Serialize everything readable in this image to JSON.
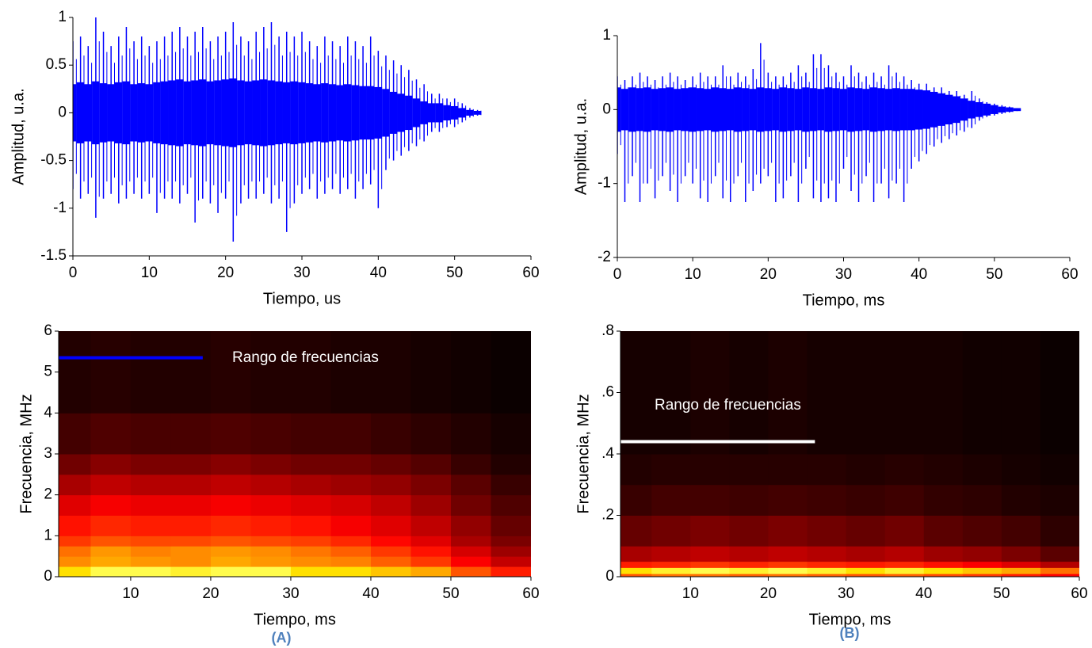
{
  "chart_data": [
    {
      "type": "waveform",
      "xlabel": "Tiempo, us",
      "ylabel": "Amplitud, u.a.",
      "color": "#0000ff",
      "xlim": [
        0,
        60
      ],
      "xticks": [
        0,
        10,
        20,
        30,
        40,
        50,
        60
      ],
      "ylim": [
        -1.5,
        1
      ],
      "yticks": [
        -1.5,
        -1,
        -0.5,
        0,
        0.5,
        1
      ],
      "x": [
        0,
        1,
        2,
        3,
        4,
        5,
        6,
        7,
        8,
        9,
        10,
        11,
        12,
        13,
        14,
        15,
        16,
        17,
        18,
        19,
        20,
        21,
        22,
        23,
        24,
        25,
        26,
        27,
        28,
        29,
        30,
        31,
        32,
        33,
        34,
        35,
        36,
        37,
        38,
        39,
        40,
        41,
        42,
        43,
        44,
        45,
        46,
        47,
        48,
        49,
        50,
        51,
        52,
        53
      ],
      "upper": [
        0.75,
        0.8,
        0.7,
        1.0,
        0.85,
        0.7,
        0.8,
        0.9,
        0.75,
        0.8,
        0.7,
        0.75,
        0.8,
        0.85,
        0.9,
        0.8,
        0.85,
        0.9,
        0.75,
        0.8,
        0.85,
        0.95,
        0.8,
        0.75,
        0.85,
        0.9,
        0.95,
        0.8,
        0.85,
        0.8,
        0.85,
        0.75,
        0.7,
        0.8,
        0.75,
        0.7,
        0.8,
        0.75,
        0.7,
        0.8,
        0.65,
        0.6,
        0.55,
        0.5,
        0.45,
        0.35,
        0.3,
        0.2,
        0.2,
        0.15,
        0.15,
        0.1,
        0.05,
        0.03
      ],
      "lower": [
        -0.8,
        -0.9,
        -0.85,
        -1.1,
        -0.9,
        -0.85,
        -0.95,
        -0.9,
        -0.85,
        -0.9,
        -0.85,
        -1.05,
        -0.9,
        -0.9,
        -0.95,
        -0.85,
        -1.15,
        -0.9,
        -0.95,
        -1.05,
        -0.9,
        -1.35,
        -0.95,
        -0.9,
        -0.9,
        -0.85,
        -0.95,
        -0.9,
        -1.25,
        -0.95,
        -0.85,
        -0.8,
        -0.9,
        -0.85,
        -0.8,
        -0.85,
        -0.8,
        -0.9,
        -0.8,
        -0.75,
        -1.0,
        -0.6,
        -0.5,
        -0.45,
        -0.4,
        -0.35,
        -0.3,
        -0.2,
        -0.2,
        -0.15,
        -0.15,
        -0.1,
        -0.05,
        -0.03
      ],
      "rms": [
        0.3,
        0.32,
        0.3,
        0.33,
        0.31,
        0.3,
        0.32,
        0.33,
        0.3,
        0.31,
        0.3,
        0.32,
        0.33,
        0.34,
        0.35,
        0.33,
        0.34,
        0.35,
        0.33,
        0.34,
        0.35,
        0.36,
        0.34,
        0.33,
        0.34,
        0.35,
        0.34,
        0.33,
        0.32,
        0.33,
        0.32,
        0.31,
        0.3,
        0.31,
        0.3,
        0.29,
        0.3,
        0.29,
        0.28,
        0.28,
        0.27,
        0.25,
        0.22,
        0.2,
        0.18,
        0.15,
        0.12,
        0.1,
        0.1,
        0.08,
        0.07,
        0.05,
        0.03,
        0.02
      ]
    },
    {
      "type": "waveform",
      "xlabel": "Tiempo, ms",
      "ylabel": "Amplitud, u.a.",
      "color": "#0000ff",
      "xlim": [
        0,
        60
      ],
      "xticks": [
        0,
        10,
        20,
        30,
        40,
        50,
        60
      ],
      "ylim": [
        -2,
        1
      ],
      "yticks": [
        -2,
        -1,
        0,
        1
      ],
      "x": [
        0,
        1,
        2,
        3,
        4,
        5,
        6,
        7,
        8,
        9,
        10,
        11,
        12,
        13,
        14,
        15,
        16,
        17,
        18,
        19,
        20,
        21,
        22,
        23,
        24,
        25,
        26,
        27,
        28,
        29,
        30,
        31,
        32,
        33,
        34,
        35,
        36,
        37,
        38,
        39,
        40,
        41,
        42,
        43,
        44,
        45,
        46,
        47,
        48,
        49,
        50,
        51,
        52,
        53
      ],
      "upper": [
        0.45,
        0.4,
        0.45,
        0.5,
        0.45,
        0.4,
        0.45,
        0.5,
        0.45,
        0.4,
        0.45,
        0.5,
        0.45,
        0.45,
        0.6,
        0.45,
        0.5,
        0.45,
        0.55,
        0.9,
        0.5,
        0.45,
        0.45,
        0.5,
        0.6,
        0.5,
        0.75,
        0.75,
        0.6,
        0.5,
        0.45,
        0.6,
        0.5,
        0.45,
        0.5,
        0.45,
        0.6,
        0.5,
        0.45,
        0.4,
        0.35,
        0.35,
        0.3,
        0.3,
        0.25,
        0.25,
        0.2,
        0.25,
        0.15,
        0.1,
        0.08,
        0.06,
        0.04,
        0.02
      ],
      "lower": [
        -0.6,
        -1.25,
        -0.9,
        -1.25,
        -1.0,
        -1.2,
        -0.9,
        -1.1,
        -1.25,
        -0.9,
        -1.0,
        -1.2,
        -1.25,
        -0.9,
        -1.2,
        -1.25,
        -0.9,
        -1.25,
        -1.1,
        -1.0,
        -0.9,
        -1.25,
        -1.2,
        -0.9,
        -1.25,
        -0.8,
        -1.2,
        -1.25,
        -1.2,
        -1.25,
        -0.8,
        -1.1,
        -1.25,
        -0.9,
        -1.25,
        -1.0,
        -1.2,
        -1.0,
        -1.25,
        -0.8,
        -0.7,
        -0.6,
        -0.5,
        -0.45,
        -0.4,
        -0.35,
        -0.3,
        -0.25,
        -0.15,
        -0.1,
        -0.08,
        -0.06,
        -0.04,
        -0.02
      ],
      "rms": [
        0.3,
        0.28,
        0.3,
        0.29,
        0.3,
        0.28,
        0.29,
        0.3,
        0.28,
        0.29,
        0.3,
        0.29,
        0.28,
        0.3,
        0.29,
        0.28,
        0.3,
        0.29,
        0.28,
        0.3,
        0.29,
        0.28,
        0.3,
        0.29,
        0.28,
        0.3,
        0.29,
        0.28,
        0.3,
        0.29,
        0.28,
        0.3,
        0.29,
        0.28,
        0.3,
        0.29,
        0.28,
        0.29,
        0.28,
        0.28,
        0.27,
        0.26,
        0.24,
        0.22,
        0.2,
        0.18,
        0.15,
        0.12,
        0.1,
        0.08,
        0.06,
        0.04,
        0.03,
        0.02
      ]
    },
    {
      "type": "spectrogram",
      "xlabel": "Tiempo, ms",
      "ylabel": "Frecuencia, MHz",
      "caption": "(A)",
      "xlim": [
        1,
        60
      ],
      "xticks": [
        10,
        20,
        30,
        40,
        50,
        60
      ],
      "ylim": [
        0,
        6
      ],
      "yticks": [
        0,
        1,
        2,
        3,
        4,
        5,
        6
      ],
      "time_bins": [
        0,
        5,
        10,
        15,
        20,
        25,
        30,
        35,
        40,
        45,
        50,
        55,
        60
      ],
      "freq_bins": [
        0,
        0.25,
        0.5,
        0.75,
        1,
        1.5,
        2,
        2.5,
        3,
        4,
        6
      ],
      "z": [
        [
          0.85,
          0.9,
          0.9,
          0.88,
          0.9,
          0.9,
          0.85,
          0.85,
          0.8,
          0.75,
          0.6,
          0.5
        ],
        [
          0.7,
          0.75,
          0.72,
          0.7,
          0.75,
          0.72,
          0.7,
          0.68,
          0.62,
          0.55,
          0.45,
          0.35
        ],
        [
          0.65,
          0.72,
          0.68,
          0.7,
          0.72,
          0.7,
          0.66,
          0.62,
          0.55,
          0.48,
          0.38,
          0.28
        ],
        [
          0.55,
          0.6,
          0.58,
          0.58,
          0.6,
          0.58,
          0.56,
          0.52,
          0.46,
          0.4,
          0.3,
          0.22
        ],
        [
          0.48,
          0.52,
          0.5,
          0.5,
          0.52,
          0.5,
          0.48,
          0.44,
          0.4,
          0.34,
          0.26,
          0.18
        ],
        [
          0.4,
          0.44,
          0.42,
          0.42,
          0.44,
          0.42,
          0.4,
          0.38,
          0.34,
          0.28,
          0.2,
          0.14
        ],
        [
          0.3,
          0.34,
          0.32,
          0.32,
          0.34,
          0.32,
          0.3,
          0.28,
          0.26,
          0.22,
          0.16,
          0.1
        ],
        [
          0.2,
          0.24,
          0.22,
          0.22,
          0.24,
          0.22,
          0.2,
          0.2,
          0.18,
          0.15,
          0.1,
          0.06
        ],
        [
          0.12,
          0.14,
          0.13,
          0.13,
          0.14,
          0.13,
          0.12,
          0.12,
          0.1,
          0.08,
          0.06,
          0.04
        ],
        [
          0.06,
          0.07,
          0.06,
          0.06,
          0.07,
          0.06,
          0.06,
          0.05,
          0.05,
          0.04,
          0.03,
          0.02
        ]
      ],
      "annotation": {
        "text": "Rango de frecuencias",
        "color": "#0000ff",
        "x": [
          1,
          19
        ],
        "y": 5.35
      }
    },
    {
      "type": "spectrogram",
      "xlabel": "Tiempo, ms",
      "ylabel": "Frecuencia, MHz",
      "caption": "(B)",
      "xlim": [
        1,
        60
      ],
      "xticks": [
        10,
        20,
        30,
        40,
        50,
        60
      ],
      "ylim": [
        0,
        0.8
      ],
      "yticks": [
        0,
        {
          "value": 0.2,
          "label": ".2"
        },
        {
          "value": 0.4,
          "label": ".4"
        },
        {
          "value": 0.6,
          "label": ".6"
        },
        {
          "value": 0.8,
          "label": ".8"
        }
      ],
      "time_bins": [
        0,
        5,
        10,
        15,
        20,
        25,
        30,
        35,
        40,
        45,
        50,
        55,
        60
      ],
      "freq_bins": [
        0,
        0.01,
        0.03,
        0.05,
        0.1,
        0.2,
        0.3,
        0.4,
        0.8
      ],
      "z": [
        [
          0.6,
          0.65,
          0.65,
          0.62,
          0.65,
          0.62,
          0.6,
          0.62,
          0.58,
          0.55,
          0.5,
          0.45
        ],
        [
          0.85,
          0.88,
          0.9,
          0.88,
          0.9,
          0.88,
          0.85,
          0.88,
          0.85,
          0.8,
          0.75,
          0.65
        ],
        [
          0.5,
          0.52,
          0.55,
          0.52,
          0.55,
          0.52,
          0.5,
          0.52,
          0.48,
          0.45,
          0.4,
          0.32
        ],
        [
          0.3,
          0.32,
          0.34,
          0.32,
          0.34,
          0.32,
          0.3,
          0.32,
          0.28,
          0.26,
          0.22,
          0.16
        ],
        [
          0.18,
          0.2,
          0.22,
          0.2,
          0.22,
          0.2,
          0.18,
          0.2,
          0.16,
          0.14,
          0.12,
          0.08
        ],
        [
          0.1,
          0.12,
          0.12,
          0.11,
          0.12,
          0.11,
          0.1,
          0.11,
          0.09,
          0.08,
          0.06,
          0.05
        ],
        [
          0.06,
          0.07,
          0.07,
          0.07,
          0.07,
          0.07,
          0.06,
          0.07,
          0.06,
          0.05,
          0.04,
          0.03
        ],
        [
          0.04,
          0.04,
          0.05,
          0.04,
          0.05,
          0.04,
          0.04,
          0.04,
          0.04,
          0.03,
          0.03,
          0.02
        ]
      ],
      "annotation": {
        "text": "Rango de frecuencias",
        "color": "#ffffff",
        "x": [
          1,
          26
        ],
        "y": 0.44
      }
    }
  ]
}
